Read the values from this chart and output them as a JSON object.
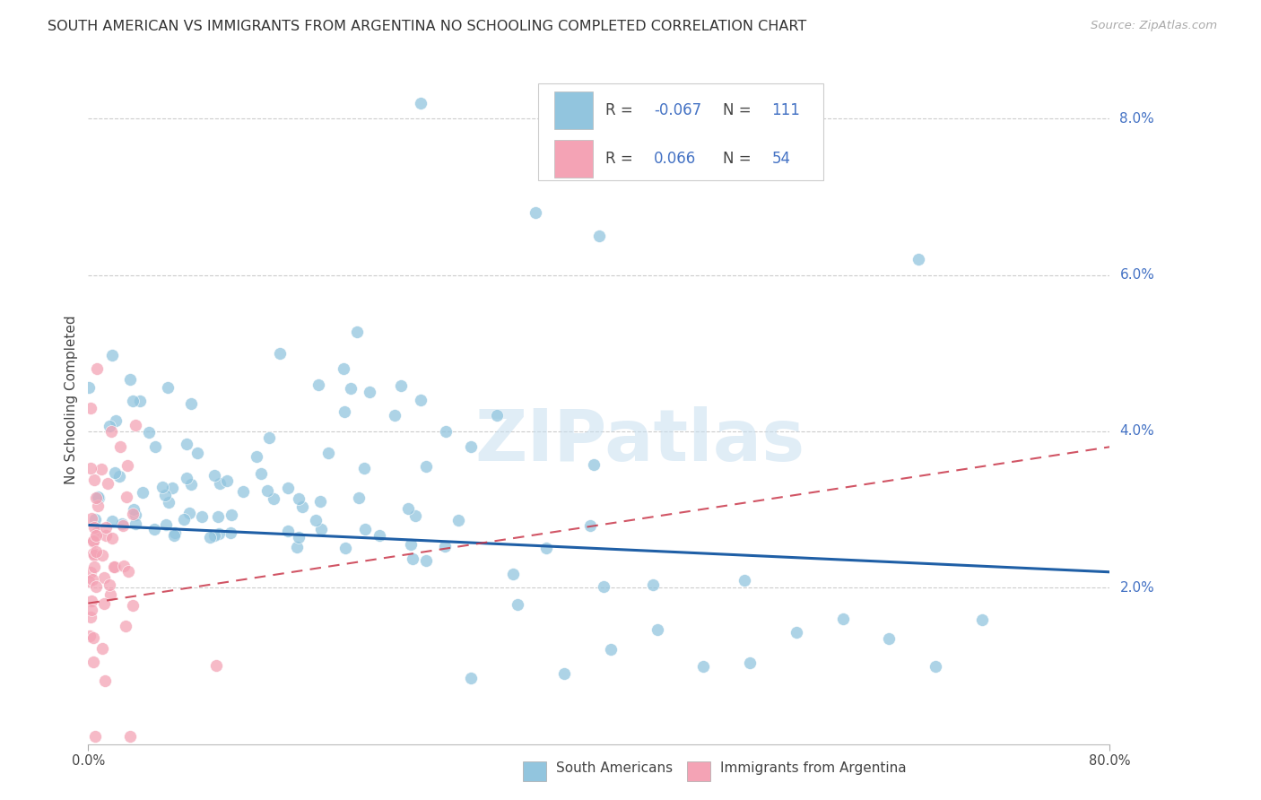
{
  "title": "SOUTH AMERICAN VS IMMIGRANTS FROM ARGENTINA NO SCHOOLING COMPLETED CORRELATION CHART",
  "source": "Source: ZipAtlas.com",
  "ylabel": "No Schooling Completed",
  "blue_color": "#92c5de",
  "pink_color": "#f4a3b5",
  "trend_blue_color": "#1f5fa6",
  "trend_pink_color": "#c9374a",
  "watermark": "ZIPatlas",
  "ytick_vals": [
    0.02,
    0.04,
    0.06,
    0.08
  ],
  "ytick_labels": [
    "2.0%",
    "4.0%",
    "6.0%",
    "8.0%"
  ],
  "xlim": [
    0.0,
    0.8
  ],
  "ylim": [
    0.0,
    0.088
  ],
  "blue_trend": [
    0.028,
    0.022
  ],
  "pink_trend": [
    0.018,
    0.038
  ],
  "legend_items": [
    {
      "color": "#92c5de",
      "r": "R = ",
      "r_val": "-0.067",
      "n": "N = ",
      "n_val": "111"
    },
    {
      "color": "#f4a3b5",
      "r": "R =  ",
      "r_val": "0.066",
      "n": "N = ",
      "n_val": "54"
    }
  ]
}
